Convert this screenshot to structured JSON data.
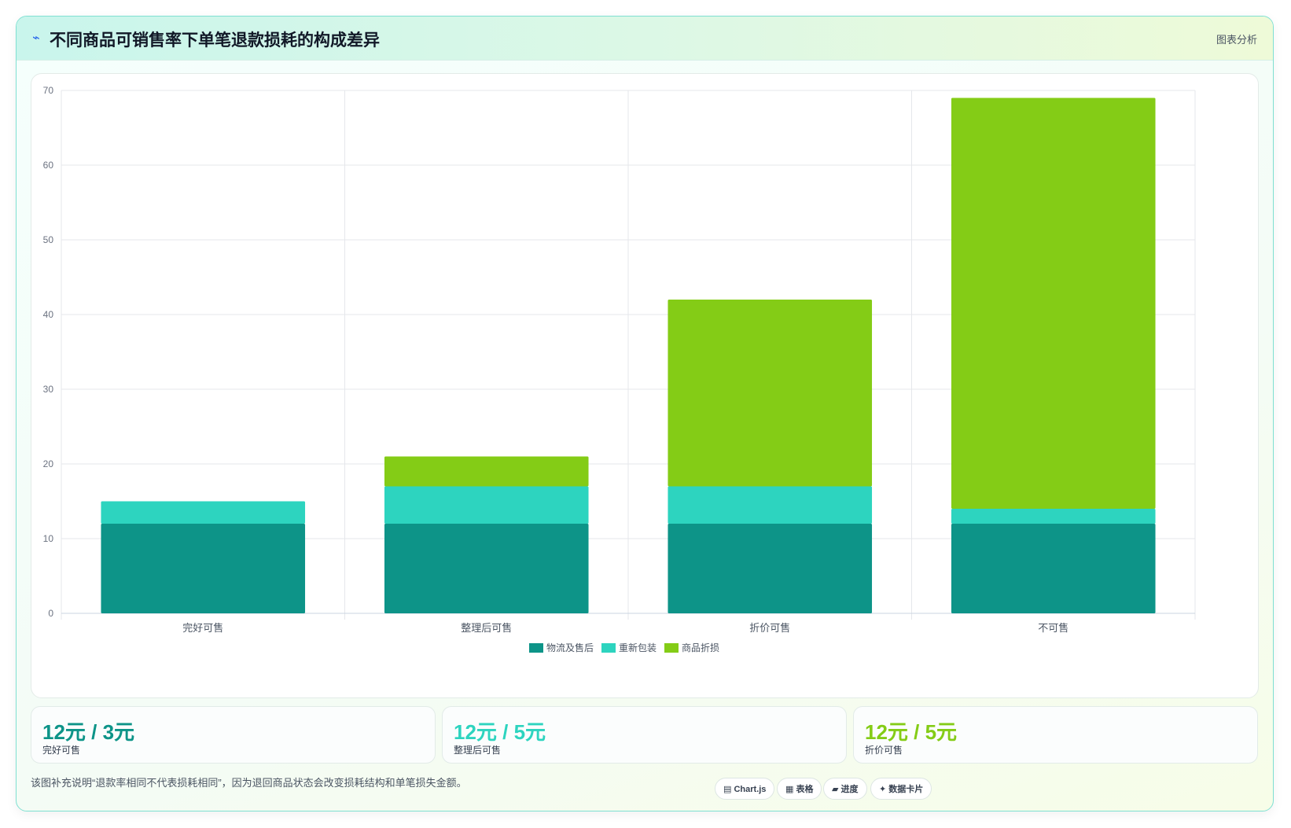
{
  "header": {
    "icon": "pulse-icon",
    "title": "不同商品可销售率下单笔退款损耗的构成差异",
    "tag": "图表分析"
  },
  "chart_data": {
    "type": "bar",
    "stacked": true,
    "categories": [
      "完好可售",
      "整理后可售",
      "折价可售",
      "不可售"
    ],
    "series": [
      {
        "name": "物流及售后",
        "values": [
          12,
          12,
          12,
          12
        ],
        "color": "#0d9488"
      },
      {
        "name": "重新包装",
        "values": [
          3,
          5,
          5,
          2
        ],
        "color": "#2dd4bf"
      },
      {
        "name": "商品折损",
        "values": [
          0,
          4,
          25,
          55
        ],
        "color": "#84cc16"
      }
    ],
    "ylim": [
      0,
      70
    ],
    "yticks": [
      0,
      10,
      20,
      30,
      40,
      50,
      60,
      70
    ],
    "grid": true,
    "legend": "bottom"
  },
  "stats": [
    {
      "value": "12元 / 3元",
      "label": "完好可售",
      "color": "#0d9488"
    },
    {
      "value": "12元 / 5元",
      "label": "整理后可售",
      "color": "#2dd4bf"
    },
    {
      "value": "12元 / 5元",
      "label": "折价可售",
      "color": "#84cc16"
    }
  ],
  "footer": {
    "note": "该图补充说明“退款率相同不代表损耗相同”，因为退回商品状态会改变损耗结构和单笔损失金额。",
    "chips": [
      {
        "icon": "chart-icon",
        "glyph": "▤",
        "label": "Chart.js"
      },
      {
        "icon": "table-icon",
        "glyph": "▦",
        "label": "表格"
      },
      {
        "icon": "progress-icon",
        "glyph": "▰",
        "label": "进度"
      },
      {
        "icon": "sparkle-icon",
        "glyph": "✦",
        "label": "数据卡片"
      }
    ]
  }
}
